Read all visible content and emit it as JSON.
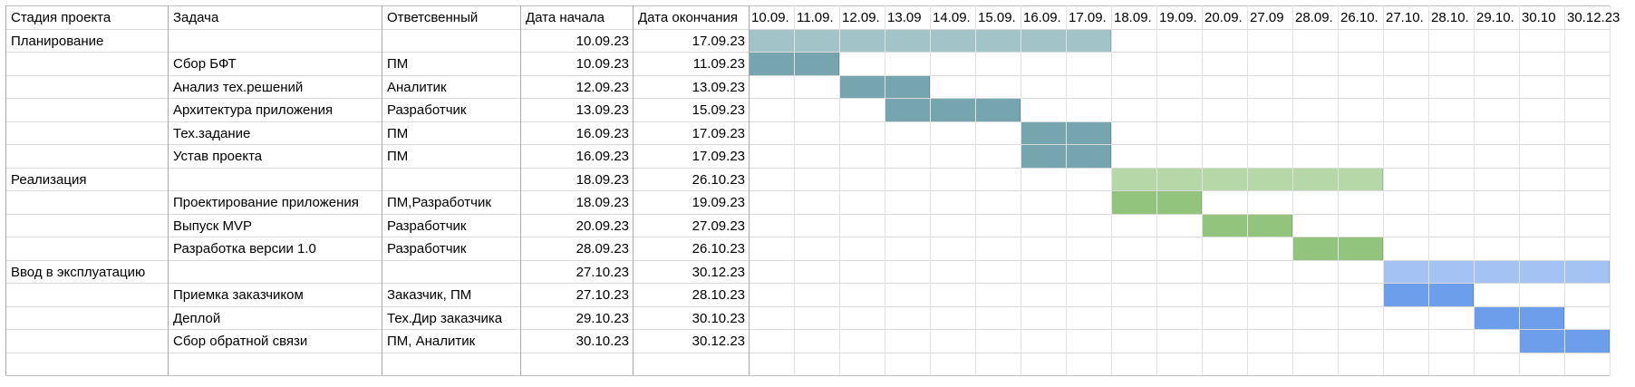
{
  "columns": {
    "stage": "Стадия проекта",
    "task": "Задача",
    "owner": "Ответсвенный",
    "start": "Дата начала",
    "end": "Дата окончания"
  },
  "date_headers": [
    "10.09.",
    "11.09.",
    "12.09.",
    "13.09",
    "14.09.",
    "15.09.",
    "16.09.",
    "17.09.",
    "18.09.",
    "19.09.",
    "20.09.",
    "27.09",
    "28.09.",
    "26.10.",
    "27.10.",
    "28.10.",
    "29.10.",
    "30.10",
    "30.12.23"
  ],
  "colors": {
    "phase1": "#a2c4c9",
    "task1": "#76a5af",
    "phase2": "#b6d7a8",
    "task2": "#93c47d",
    "phase3": "#a4c2f4",
    "task3": "#6d9eeb"
  },
  "rows": [
    {
      "stage": "Планирование",
      "task": "",
      "owner": "",
      "start": "10.09.23",
      "end": "17.09.23",
      "bar": [
        0,
        8
      ],
      "color": "phase1"
    },
    {
      "stage": "",
      "task": "Сбор БФТ",
      "owner": "ПМ",
      "start": "10.09.23",
      "end": "11.09.23",
      "bar": [
        0,
        2
      ],
      "color": "task1"
    },
    {
      "stage": "",
      "task": "Анализ тех.решений",
      "owner": "Аналитик",
      "start": "12.09.23",
      "end": "13.09.23",
      "bar": [
        2,
        2
      ],
      "color": "task1"
    },
    {
      "stage": "",
      "task": "Архитектура приложения",
      "owner": "Разработчик",
      "start": "13.09.23",
      "end": "15.09.23",
      "bar": [
        3,
        3
      ],
      "color": "task1"
    },
    {
      "stage": "",
      "task": "Тех.задание",
      "owner": "ПМ",
      "start": "16.09.23",
      "end": "17.09.23",
      "bar": [
        6,
        2
      ],
      "color": "task1"
    },
    {
      "stage": "",
      "task": "Устав проекта",
      "owner": "ПМ",
      "start": "16.09.23",
      "end": "17.09.23",
      "bar": [
        6,
        2
      ],
      "color": "task1"
    },
    {
      "stage": "Реализация",
      "task": "",
      "owner": "",
      "start": "18.09.23",
      "end": "26.10.23",
      "bar": [
        8,
        6
      ],
      "color": "phase2"
    },
    {
      "stage": "",
      "task": "Проектирование приложения",
      "owner": "ПМ,Разработчик",
      "start": "18.09.23",
      "end": "19.09.23",
      "bar": [
        8,
        2
      ],
      "color": "task2"
    },
    {
      "stage": "",
      "task": "Выпуск MVP",
      "owner": "Разработчик",
      "start": "20.09.23",
      "end": "27.09.23",
      "bar": [
        10,
        2
      ],
      "color": "task2"
    },
    {
      "stage": "",
      "task": "Разработка версии 1.0",
      "owner": "Разработчик",
      "start": "28.09.23",
      "end": "26.10.23",
      "bar": [
        12,
        2
      ],
      "color": "task2"
    },
    {
      "stage": "Ввод в эксплуатацию",
      "task": "",
      "owner": "",
      "start": "27.10.23",
      "end": "30.12.23",
      "bar": [
        14,
        5
      ],
      "color": "phase3"
    },
    {
      "stage": "",
      "task": "Приемка заказчиком",
      "owner": "Заказчик, ПМ",
      "start": "27.10.23",
      "end": "28.10.23",
      "bar": [
        14,
        2
      ],
      "color": "task3"
    },
    {
      "stage": "",
      "task": "Деплой",
      "owner": "Тех.Дир заказчика",
      "start": "29.10.23",
      "end": "30.10.23",
      "bar": [
        16,
        2
      ],
      "color": "task3"
    },
    {
      "stage": "",
      "task": "Сбор обратной связи",
      "owner": "ПМ, Аналитик",
      "start": "30.10.23",
      "end": "30.12.23",
      "bar": [
        17,
        2
      ],
      "color": "task3"
    },
    {
      "stage": "",
      "task": "",
      "owner": "",
      "start": "",
      "end": "",
      "bar": null,
      "color": ""
    }
  ]
}
